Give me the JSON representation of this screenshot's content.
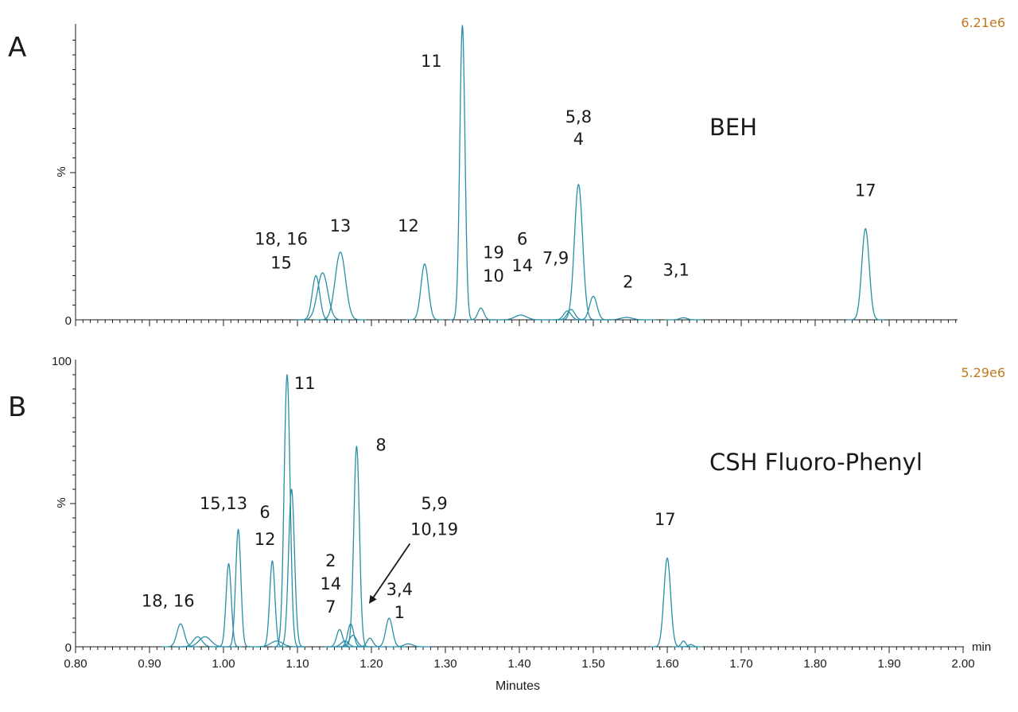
{
  "chart_data": [
    {
      "type": "line",
      "panel_label": "A",
      "column_label": "BEH",
      "scale_label": "6.21e6",
      "ylabel": "%",
      "y_ticks": [
        "0"
      ],
      "xlim": [
        0.8,
        2.0
      ],
      "ylim": [
        0,
        100
      ],
      "line_color": "#2a8fa6",
      "scale_color": "#c07a1e",
      "peaks": [
        {
          "x": 1.125,
          "height": 15,
          "width": 0.005
        },
        {
          "x": 1.134,
          "height": 16,
          "width": 0.007
        },
        {
          "x": 1.158,
          "height": 23,
          "width": 0.007
        },
        {
          "x": 1.272,
          "height": 19,
          "width": 0.005
        },
        {
          "x": 1.323,
          "height": 100,
          "width": 0.0035
        },
        {
          "x": 1.348,
          "height": 4,
          "width": 0.004
        },
        {
          "x": 1.402,
          "height": 1.6,
          "width": 0.008
        },
        {
          "x": 1.465,
          "height": 3,
          "width": 0.005
        },
        {
          "x": 1.47,
          "height": 3.5,
          "width": 0.005
        },
        {
          "x": 1.48,
          "height": 46,
          "width": 0.0055
        },
        {
          "x": 1.5,
          "height": 8,
          "width": 0.005
        },
        {
          "x": 1.545,
          "height": 0.8,
          "width": 0.008
        },
        {
          "x": 1.622,
          "height": 0.7,
          "width": 0.005
        },
        {
          "x": 1.868,
          "height": 31,
          "width": 0.005
        }
      ],
      "annotations": [
        {
          "text": "11",
          "x": 1.281,
          "y": 86
        },
        {
          "text": "5,8",
          "x": 1.48,
          "y": 67
        },
        {
          "text": "4",
          "x": 1.48,
          "y": 59.5
        },
        {
          "text": "17",
          "x": 1.868,
          "y": 42
        },
        {
          "text": "18, 16",
          "x": 1.078,
          "y": 25.5
        },
        {
          "text": "15",
          "x": 1.078,
          "y": 17.5
        },
        {
          "text": "13",
          "x": 1.158,
          "y": 30
        },
        {
          "text": "12",
          "x": 1.25,
          "y": 30
        },
        {
          "text": "19",
          "x": 1.365,
          "y": 21
        },
        {
          "text": "10",
          "x": 1.365,
          "y": 13
        },
        {
          "text": "6",
          "x": 1.404,
          "y": 25.5
        },
        {
          "text": "14",
          "x": 1.404,
          "y": 16.5
        },
        {
          "text": "7,9",
          "x": 1.449,
          "y": 19
        },
        {
          "text": "2",
          "x": 1.547,
          "y": 11
        },
        {
          "text": "3,1",
          "x": 1.612,
          "y": 15
        }
      ]
    },
    {
      "type": "line",
      "panel_label": "B",
      "column_label": "CSH Fluoro-Phenyl",
      "scale_label": "5.29e6",
      "ylabel": "%",
      "y_ticks": [
        "0",
        "100"
      ],
      "xlim": [
        0.8,
        2.0
      ],
      "ylim": [
        0,
        100
      ],
      "line_color": "#2a8fa6",
      "scale_color": "#c07a1e",
      "peaks": [
        {
          "x": 0.942,
          "height": 8,
          "width": 0.005
        },
        {
          "x": 0.965,
          "height": 3.5,
          "width": 0.006
        },
        {
          "x": 0.975,
          "height": 3.5,
          "width": 0.008
        },
        {
          "x": 1.007,
          "height": 29,
          "width": 0.0035
        },
        {
          "x": 1.02,
          "height": 41,
          "width": 0.0035
        },
        {
          "x": 1.066,
          "height": 30,
          "width": 0.0035
        },
        {
          "x": 1.072,
          "height": 2,
          "width": 0.008
        },
        {
          "x": 1.086,
          "height": 95,
          "width": 0.004
        },
        {
          "x": 1.092,
          "height": 55,
          "width": 0.004
        },
        {
          "x": 1.157,
          "height": 6,
          "width": 0.004
        },
        {
          "x": 1.164,
          "height": 2,
          "width": 0.005
        },
        {
          "x": 1.172,
          "height": 8,
          "width": 0.004
        },
        {
          "x": 1.175,
          "height": 4,
          "width": 0.005
        },
        {
          "x": 1.18,
          "height": 70,
          "width": 0.0038
        },
        {
          "x": 1.198,
          "height": 3,
          "width": 0.004
        },
        {
          "x": 1.224,
          "height": 10,
          "width": 0.0045
        },
        {
          "x": 1.25,
          "height": 1,
          "width": 0.006
        },
        {
          "x": 1.6,
          "height": 31,
          "width": 0.0045
        },
        {
          "x": 1.622,
          "height": 2,
          "width": 0.003
        },
        {
          "x": 1.632,
          "height": 0.8,
          "width": 0.003
        }
      ],
      "annotations": [
        {
          "text": "11",
          "x": 1.11,
          "y": 90
        },
        {
          "text": "8",
          "x": 1.213,
          "y": 68.5
        },
        {
          "text": "CSH Fluoro-Phenyl",
          "x": 0,
          "y": 0,
          "skip": true
        },
        {
          "text": "15,13",
          "x": 1.0,
          "y": 48
        },
        {
          "text": "6",
          "x": 1.056,
          "y": 45
        },
        {
          "text": "12",
          "x": 1.056,
          "y": 35.5
        },
        {
          "text": "5,9",
          "x": 1.285,
          "y": 48
        },
        {
          "text": "10,19",
          "x": 1.285,
          "y": 39
        },
        {
          "text": "17",
          "x": 1.597,
          "y": 42.5
        },
        {
          "text": "2",
          "x": 1.145,
          "y": 28
        },
        {
          "text": "14",
          "x": 1.145,
          "y": 20
        },
        {
          "text": "7",
          "x": 1.145,
          "y": 12
        },
        {
          "text": "3,4",
          "x": 1.238,
          "y": 18
        },
        {
          "text": "1",
          "x": 1.238,
          "y": 10
        },
        {
          "text": "18, 16",
          "x": 0.925,
          "y": 14
        }
      ],
      "arrow": {
        "from": [
          1.252,
          36
        ],
        "to": [
          1.198,
          15.5
        ]
      },
      "x_ticks": [
        "0.80",
        "0.90",
        "1.00",
        "1.10",
        "1.20",
        "1.30",
        "1.40",
        "1.50",
        "1.60",
        "1.70",
        "1.80",
        "1.90",
        "2.00"
      ],
      "x_unit": "min",
      "xlabel": "Minutes"
    }
  ]
}
